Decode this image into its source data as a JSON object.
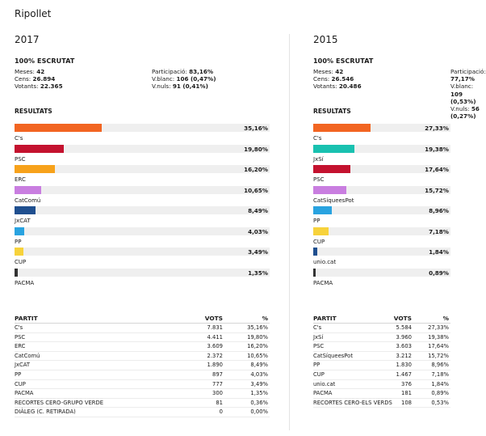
{
  "town": "Ripollet",
  "elections": [
    {
      "year": "2017",
      "scrutat": "100% ESCRUTAT",
      "stats_left": [
        {
          "label": "Meses:",
          "value": "42"
        },
        {
          "label": "Cens:",
          "value": "26.894"
        },
        {
          "label": "Votants:",
          "value": "22.365"
        }
      ],
      "stats_right": [
        {
          "label": "Participació:",
          "value": "83,16%"
        },
        {
          "label": "V.blanc:",
          "value": "106 (0,47%)"
        },
        {
          "label": "V.nuls:",
          "value": "91 (0,41%)"
        }
      ],
      "results_title": "RESULTATS",
      "bars": [
        {
          "party": "C's",
          "pct": "35,16%",
          "value": 35.16,
          "color": "#f26522"
        },
        {
          "party": "PSC",
          "pct": "19,80%",
          "value": 19.8,
          "color": "#c4122f"
        },
        {
          "party": "ERC",
          "pct": "16,20%",
          "value": 16.2,
          "color": "#f7a21b"
        },
        {
          "party": "CatComú",
          "pct": "10,65%",
          "value": 10.65,
          "color": "#c97ee0"
        },
        {
          "party": "JxCAT",
          "pct": "8,49%",
          "value": 8.49,
          "color": "#1f4f8f"
        },
        {
          "party": "PP",
          "pct": "4,03%",
          "value": 4.03,
          "color": "#29a3e0"
        },
        {
          "party": "CUP",
          "pct": "3,49%",
          "value": 3.49,
          "color": "#f7d23b"
        },
        {
          "party": "PACMA",
          "pct": "1,35%",
          "value": 1.35,
          "color": "#333333"
        }
      ],
      "table_headers": {
        "party": "PARTIT",
        "votes": "VOTS",
        "pct": "%"
      },
      "table_rows": [
        {
          "party": "C's",
          "votes": "7.831",
          "pct": "35,16%"
        },
        {
          "party": "PSC",
          "votes": "4.411",
          "pct": "19,80%"
        },
        {
          "party": "ERC",
          "votes": "3.609",
          "pct": "16,20%"
        },
        {
          "party": "CatComú",
          "votes": "2.372",
          "pct": "10,65%"
        },
        {
          "party": "JxCAT",
          "votes": "1.890",
          "pct": "8,49%"
        },
        {
          "party": "PP",
          "votes": "897",
          "pct": "4,03%"
        },
        {
          "party": "CUP",
          "votes": "777",
          "pct": "3,49%"
        },
        {
          "party": "PACMA",
          "votes": "300",
          "pct": "1,35%"
        },
        {
          "party": "RECORTES CERO-GRUPO VERDE",
          "votes": "81",
          "pct": "0,36%"
        },
        {
          "party": "DIÀLEG (C. RETIRADA)",
          "votes": "0",
          "pct": "0,00%"
        }
      ]
    },
    {
      "year": "2015",
      "scrutat": "100% ESCRUTAT",
      "stats_left": [
        {
          "label": "Meses:",
          "value": "42"
        },
        {
          "label": "Cens:",
          "value": "26.546"
        },
        {
          "label": "Votants:",
          "value": "20.486"
        }
      ],
      "stats_right": [
        {
          "label": "Participació:",
          "value": "77,17%"
        },
        {
          "label": "V.blanc:",
          "value": "109 (0,53%)"
        },
        {
          "label": "V.nuls:",
          "value": "56 (0,27%)"
        }
      ],
      "results_title": "RESULTATS",
      "bars": [
        {
          "party": "C's",
          "pct": "27,33%",
          "value": 27.33,
          "color": "#f26522"
        },
        {
          "party": "JxSí",
          "pct": "19,38%",
          "value": 19.38,
          "color": "#19c1b0"
        },
        {
          "party": "PSC",
          "pct": "17,64%",
          "value": 17.64,
          "color": "#c4122f"
        },
        {
          "party": "CatSíqueesPot",
          "pct": "15,72%",
          "value": 15.72,
          "color": "#c97ee0"
        },
        {
          "party": "PP",
          "pct": "8,96%",
          "value": 8.96,
          "color": "#29a3e0"
        },
        {
          "party": "CUP",
          "pct": "7,18%",
          "value": 7.18,
          "color": "#f7d23b"
        },
        {
          "party": "unio.cat",
          "pct": "1,84%",
          "value": 1.84,
          "color": "#1f4f8f"
        },
        {
          "party": "PACMA",
          "pct": "0,89%",
          "value": 0.89,
          "color": "#333333"
        }
      ],
      "table_headers": {
        "party": "PARTIT",
        "votes": "VOTS",
        "pct": "%"
      },
      "table_rows": [
        {
          "party": "C's",
          "votes": "5.584",
          "pct": "27,33%"
        },
        {
          "party": "JxSí",
          "votes": "3.960",
          "pct": "19,38%"
        },
        {
          "party": "PSC",
          "votes": "3.603",
          "pct": "17,64%"
        },
        {
          "party": "CatSíqueesPot",
          "votes": "3.212",
          "pct": "15,72%"
        },
        {
          "party": "PP",
          "votes": "1.830",
          "pct": "8,96%"
        },
        {
          "party": "CUP",
          "votes": "1.467",
          "pct": "7,18%"
        },
        {
          "party": "unio.cat",
          "votes": "376",
          "pct": "1,84%"
        },
        {
          "party": "PACMA",
          "votes": "181",
          "pct": "0,89%"
        },
        {
          "party": "RECORTES CERO-ELS VERDS",
          "votes": "108",
          "pct": "0,53%"
        }
      ]
    }
  ]
}
